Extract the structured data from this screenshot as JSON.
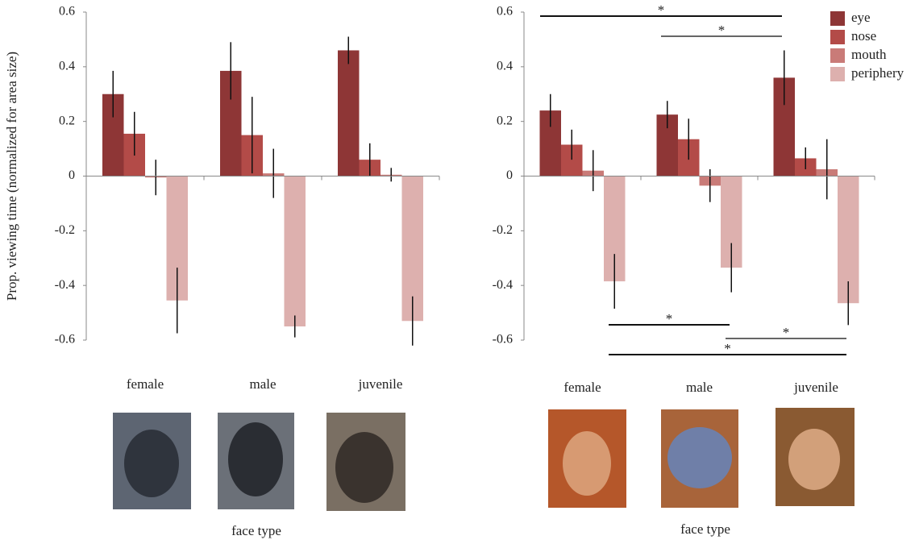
{
  "chart_data": [
    {
      "type": "bar",
      "y_label": "Prop. viewing time (normalized for area size)",
      "x_label": "face type",
      "categories": [
        "female",
        "male",
        "juvenile"
      ],
      "ylim": [
        -0.6,
        0.6
      ],
      "yticks": [
        0.6,
        0.4,
        0.2,
        0,
        -0.2,
        -0.4,
        -0.6
      ],
      "series": [
        {
          "name": "eye",
          "color": "#8e3636",
          "values": [
            0.3,
            0.385,
            0.46
          ],
          "errors": [
            0.085,
            0.105,
            0.05
          ]
        },
        {
          "name": "nose",
          "color": "#b34b48",
          "values": [
            0.155,
            0.15,
            0.06
          ],
          "errors": [
            0.08,
            0.14,
            0.06
          ]
        },
        {
          "name": "mouth",
          "color": "#c97b78",
          "values": [
            -0.005,
            0.01,
            0.005
          ],
          "errors": [
            0.065,
            0.09,
            0.025
          ]
        },
        {
          "name": "periphery",
          "color": "#ddb0ae",
          "values": [
            -0.455,
            -0.55,
            -0.53
          ],
          "errors": [
            0.12,
            0.04,
            0.09
          ]
        }
      ]
    },
    {
      "type": "bar",
      "x_label": "face type",
      "categories": [
        "female",
        "male",
        "juvenile"
      ],
      "ylim": [
        -0.6,
        0.6
      ],
      "yticks": [
        0.6,
        0.4,
        0.2,
        0,
        -0.2,
        -0.4,
        -0.6
      ],
      "legend": "upper right",
      "annotations": [
        "*",
        "*",
        "*",
        "*",
        "*"
      ],
      "series": [
        {
          "name": "eye",
          "color": "#8e3636",
          "values": [
            0.24,
            0.225,
            0.36
          ],
          "errors": [
            0.06,
            0.05,
            0.1
          ]
        },
        {
          "name": "nose",
          "color": "#b34b48",
          "values": [
            0.115,
            0.135,
            0.065
          ],
          "errors": [
            0.055,
            0.075,
            0.04
          ]
        },
        {
          "name": "mouth",
          "color": "#c97b78",
          "values": [
            0.02,
            -0.035,
            0.025
          ],
          "errors": [
            0.075,
            0.06,
            0.11
          ]
        },
        {
          "name": "periphery",
          "color": "#ddb0ae",
          "values": [
            -0.385,
            -0.335,
            -0.465
          ],
          "errors": [
            0.1,
            0.09,
            0.08
          ]
        }
      ]
    }
  ]
}
